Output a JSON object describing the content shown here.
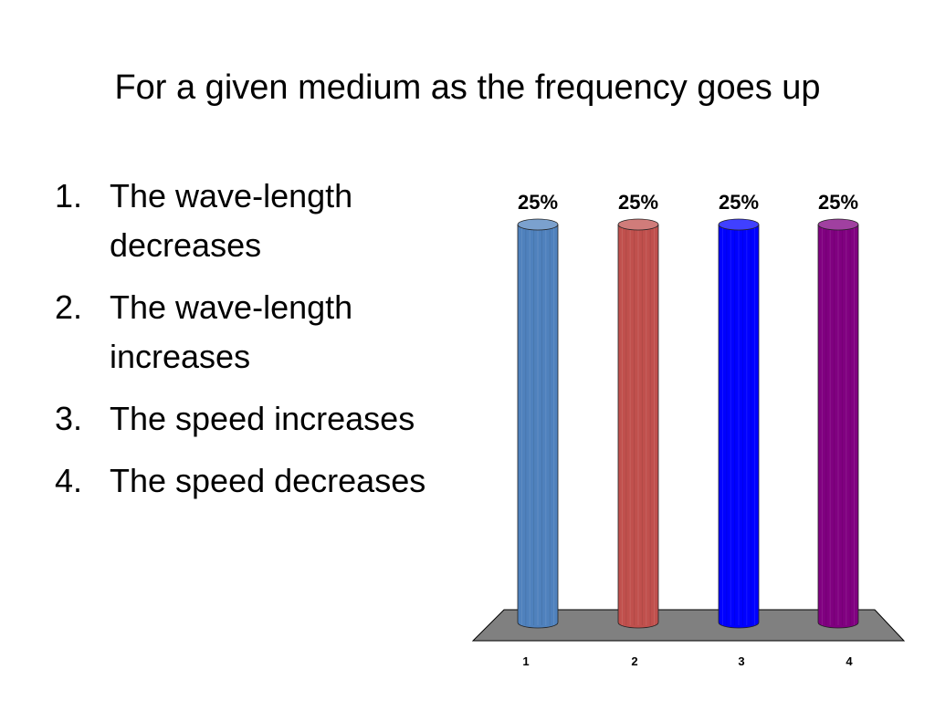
{
  "slide": {
    "title": "For a given medium as the frequency goes up"
  },
  "answers": [
    {
      "number": "1.",
      "text": "The wave-length decreases"
    },
    {
      "number": "2.",
      "text": "The wave-length increases"
    },
    {
      "number": "3.",
      "text": "The speed increases"
    },
    {
      "number": "4.",
      "text": "The speed decreases"
    }
  ],
  "chart_data": {
    "type": "bar",
    "title": "",
    "xlabel": "",
    "ylabel": "",
    "categories": [
      "1",
      "2",
      "3",
      "4"
    ],
    "values": [
      25,
      25,
      25,
      25
    ],
    "data_labels": [
      "25%",
      "25%",
      "25%",
      "25%"
    ],
    "ylim": [
      0,
      25
    ],
    "grid": false,
    "legend": "none",
    "colors": [
      "#4f81bd",
      "#c0504d",
      "#0000ff",
      "#800080"
    ],
    "floor_color": "#808080"
  }
}
